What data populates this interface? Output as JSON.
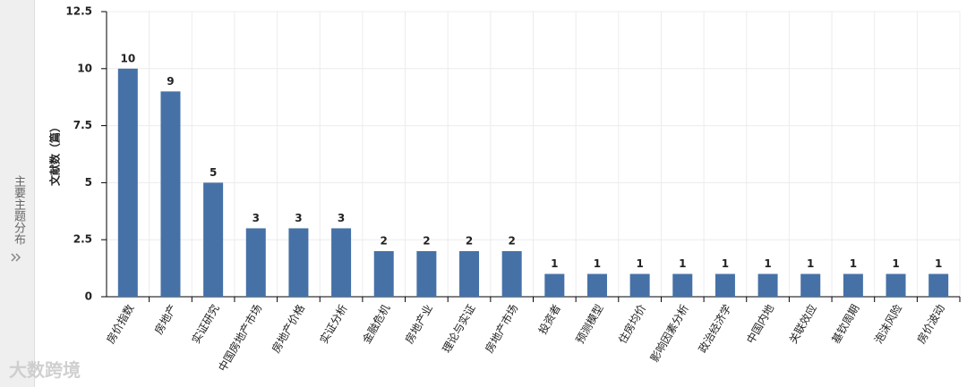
{
  "sidebar": {
    "label": "主要主题分布"
  },
  "watermark": "大数跨境",
  "chart_data": {
    "type": "bar",
    "y_label": "文献数（篇）",
    "categories": [
      "房价指数",
      "房地产",
      "实证研究",
      "中国房地产市场",
      "房地产价格",
      "实证分析",
      "金融危机",
      "房地产业",
      "理论与实证",
      "房地产市场",
      "投资者",
      "预测模型",
      "住房均价",
      "影响因素分析",
      "政治经济学",
      "中国内地",
      "关联效应",
      "基钦周期",
      "泡沫风险",
      "房价波动"
    ],
    "values": [
      10,
      9,
      5,
      3,
      3,
      3,
      2,
      2,
      2,
      2,
      1,
      1,
      1,
      1,
      1,
      1,
      1,
      1,
      1,
      1
    ],
    "color": "#4671a7",
    "ylim": [
      0,
      12.5
    ],
    "yticks": [
      0,
      2.5,
      5,
      7.5,
      10,
      12.5
    ],
    "grid": true
  }
}
